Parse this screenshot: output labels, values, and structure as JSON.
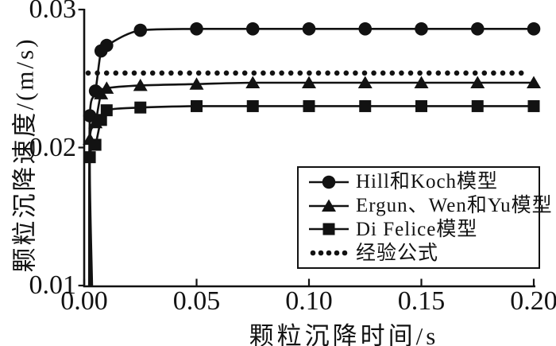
{
  "figure": {
    "background": "#ffffff",
    "foreground": "#121212"
  },
  "chart_data": {
    "type": "line",
    "title": "",
    "xlabel": "颗粒沉降时间/s",
    "ylabel": "颗粒沉降速度/(m/s)",
    "xlim": [
      0,
      0.205
    ],
    "ylim": [
      0.01,
      0.03
    ],
    "grid": false,
    "legend_position": "lower-right-inside",
    "x_ticks": [
      {
        "label": "0.00",
        "value": 0.0
      },
      {
        "label": "0.05",
        "value": 0.05
      },
      {
        "label": "0.10",
        "value": 0.1
      },
      {
        "label": "0.15",
        "value": 0.15
      },
      {
        "label": "0.20",
        "value": 0.2
      }
    ],
    "y_ticks": [
      {
        "label": "0.03",
        "value": 0.03
      },
      {
        "label": "0.02",
        "value": 0.02
      },
      {
        "label": "0.01",
        "value": 0.01
      }
    ],
    "series": [
      {
        "id": "hill-koch",
        "name": "Hill和Koch模型",
        "marker": "circle",
        "line": "solid",
        "t": [
          0.0025,
          0.005,
          0.0075,
          0.01,
          0.025,
          0.05,
          0.075,
          0.1,
          0.125,
          0.15,
          0.175,
          0.2
        ],
        "v": [
          0.0223,
          0.0241,
          0.027,
          0.0274,
          0.0285,
          0.0286,
          0.0286,
          0.0286,
          0.0286,
          0.0286,
          0.0286,
          0.0286
        ],
        "line_start": {
          "t": 0.0022,
          "v": 0.01
        }
      },
      {
        "id": "ergun-wen-yu",
        "name": "Ergun、Wen和Yu模型",
        "marker": "triangle",
        "line": "solid",
        "t": [
          0.0025,
          0.005,
          0.0075,
          0.01,
          0.025,
          0.05,
          0.075,
          0.1,
          0.125,
          0.15,
          0.175,
          0.2
        ],
        "v": [
          0.0206,
          0.0218,
          0.0239,
          0.0243,
          0.0245,
          0.0246,
          0.0247,
          0.0247,
          0.0247,
          0.0247,
          0.0247,
          0.0247
        ],
        "line_start": {
          "t": 0.0028,
          "v": 0.01
        }
      },
      {
        "id": "di-felice",
        "name": "Di Felice模型",
        "marker": "square",
        "line": "solid",
        "t": [
          0.0025,
          0.005,
          0.0075,
          0.01,
          0.025,
          0.05,
          0.075,
          0.1,
          0.125,
          0.15,
          0.175,
          0.2
        ],
        "v": [
          0.0193,
          0.0202,
          0.022,
          0.0227,
          0.0229,
          0.023,
          0.023,
          0.023,
          0.023,
          0.023,
          0.023,
          0.023
        ],
        "line_start": {
          "t": 0.0035,
          "v": 0.01
        }
      },
      {
        "id": "empirical",
        "name": "经验公式",
        "marker": "none",
        "line": "dotted",
        "constant_v": 0.0254,
        "t_start": 0.0,
        "t_end": 0.198
      }
    ]
  }
}
